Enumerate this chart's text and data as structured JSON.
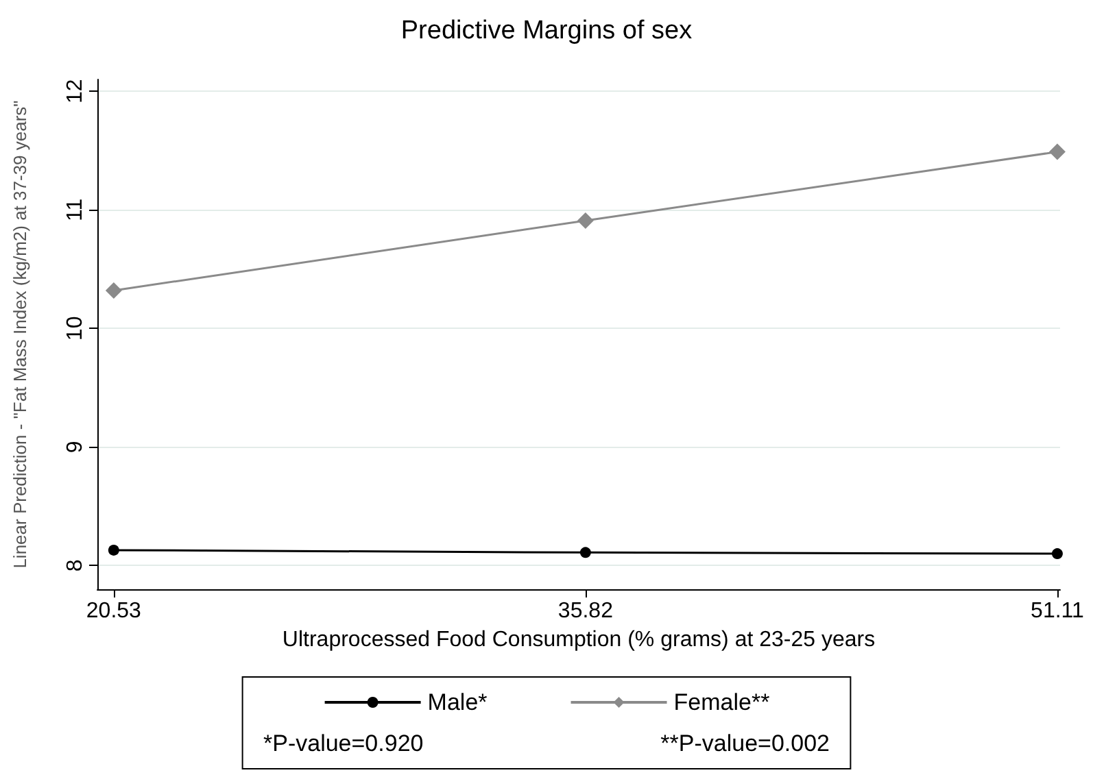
{
  "chart_data": {
    "type": "line",
    "title": "Predictive Margins of sex",
    "xlabel": "Ultraprocessed Food Consumption (% grams) at 23-25 years",
    "ylabel": "Linear Prediction - \"Fat Mass Index (kg/m2) at 37-39 years\"",
    "x": [
      20.53,
      35.82,
      51.11
    ],
    "series": [
      {
        "name": "Male*",
        "color": "#000000",
        "marker": "circle",
        "values": [
          8.13,
          8.11,
          8.1
        ]
      },
      {
        "name": "Female**",
        "color": "#8a8a8a",
        "marker": "diamond",
        "values": [
          10.32,
          10.91,
          11.49
        ]
      }
    ],
    "xlim": [
      20,
      51.2
    ],
    "xticks": [
      20.53,
      35.82,
      51.11
    ],
    "ylim": [
      7.8,
      12.1
    ],
    "yticks": [
      8,
      9,
      10,
      11,
      12
    ],
    "grid": "y",
    "legend": "bottom",
    "annotations": [
      "*P-value=0.920",
      "**P-value=0.002"
    ]
  }
}
